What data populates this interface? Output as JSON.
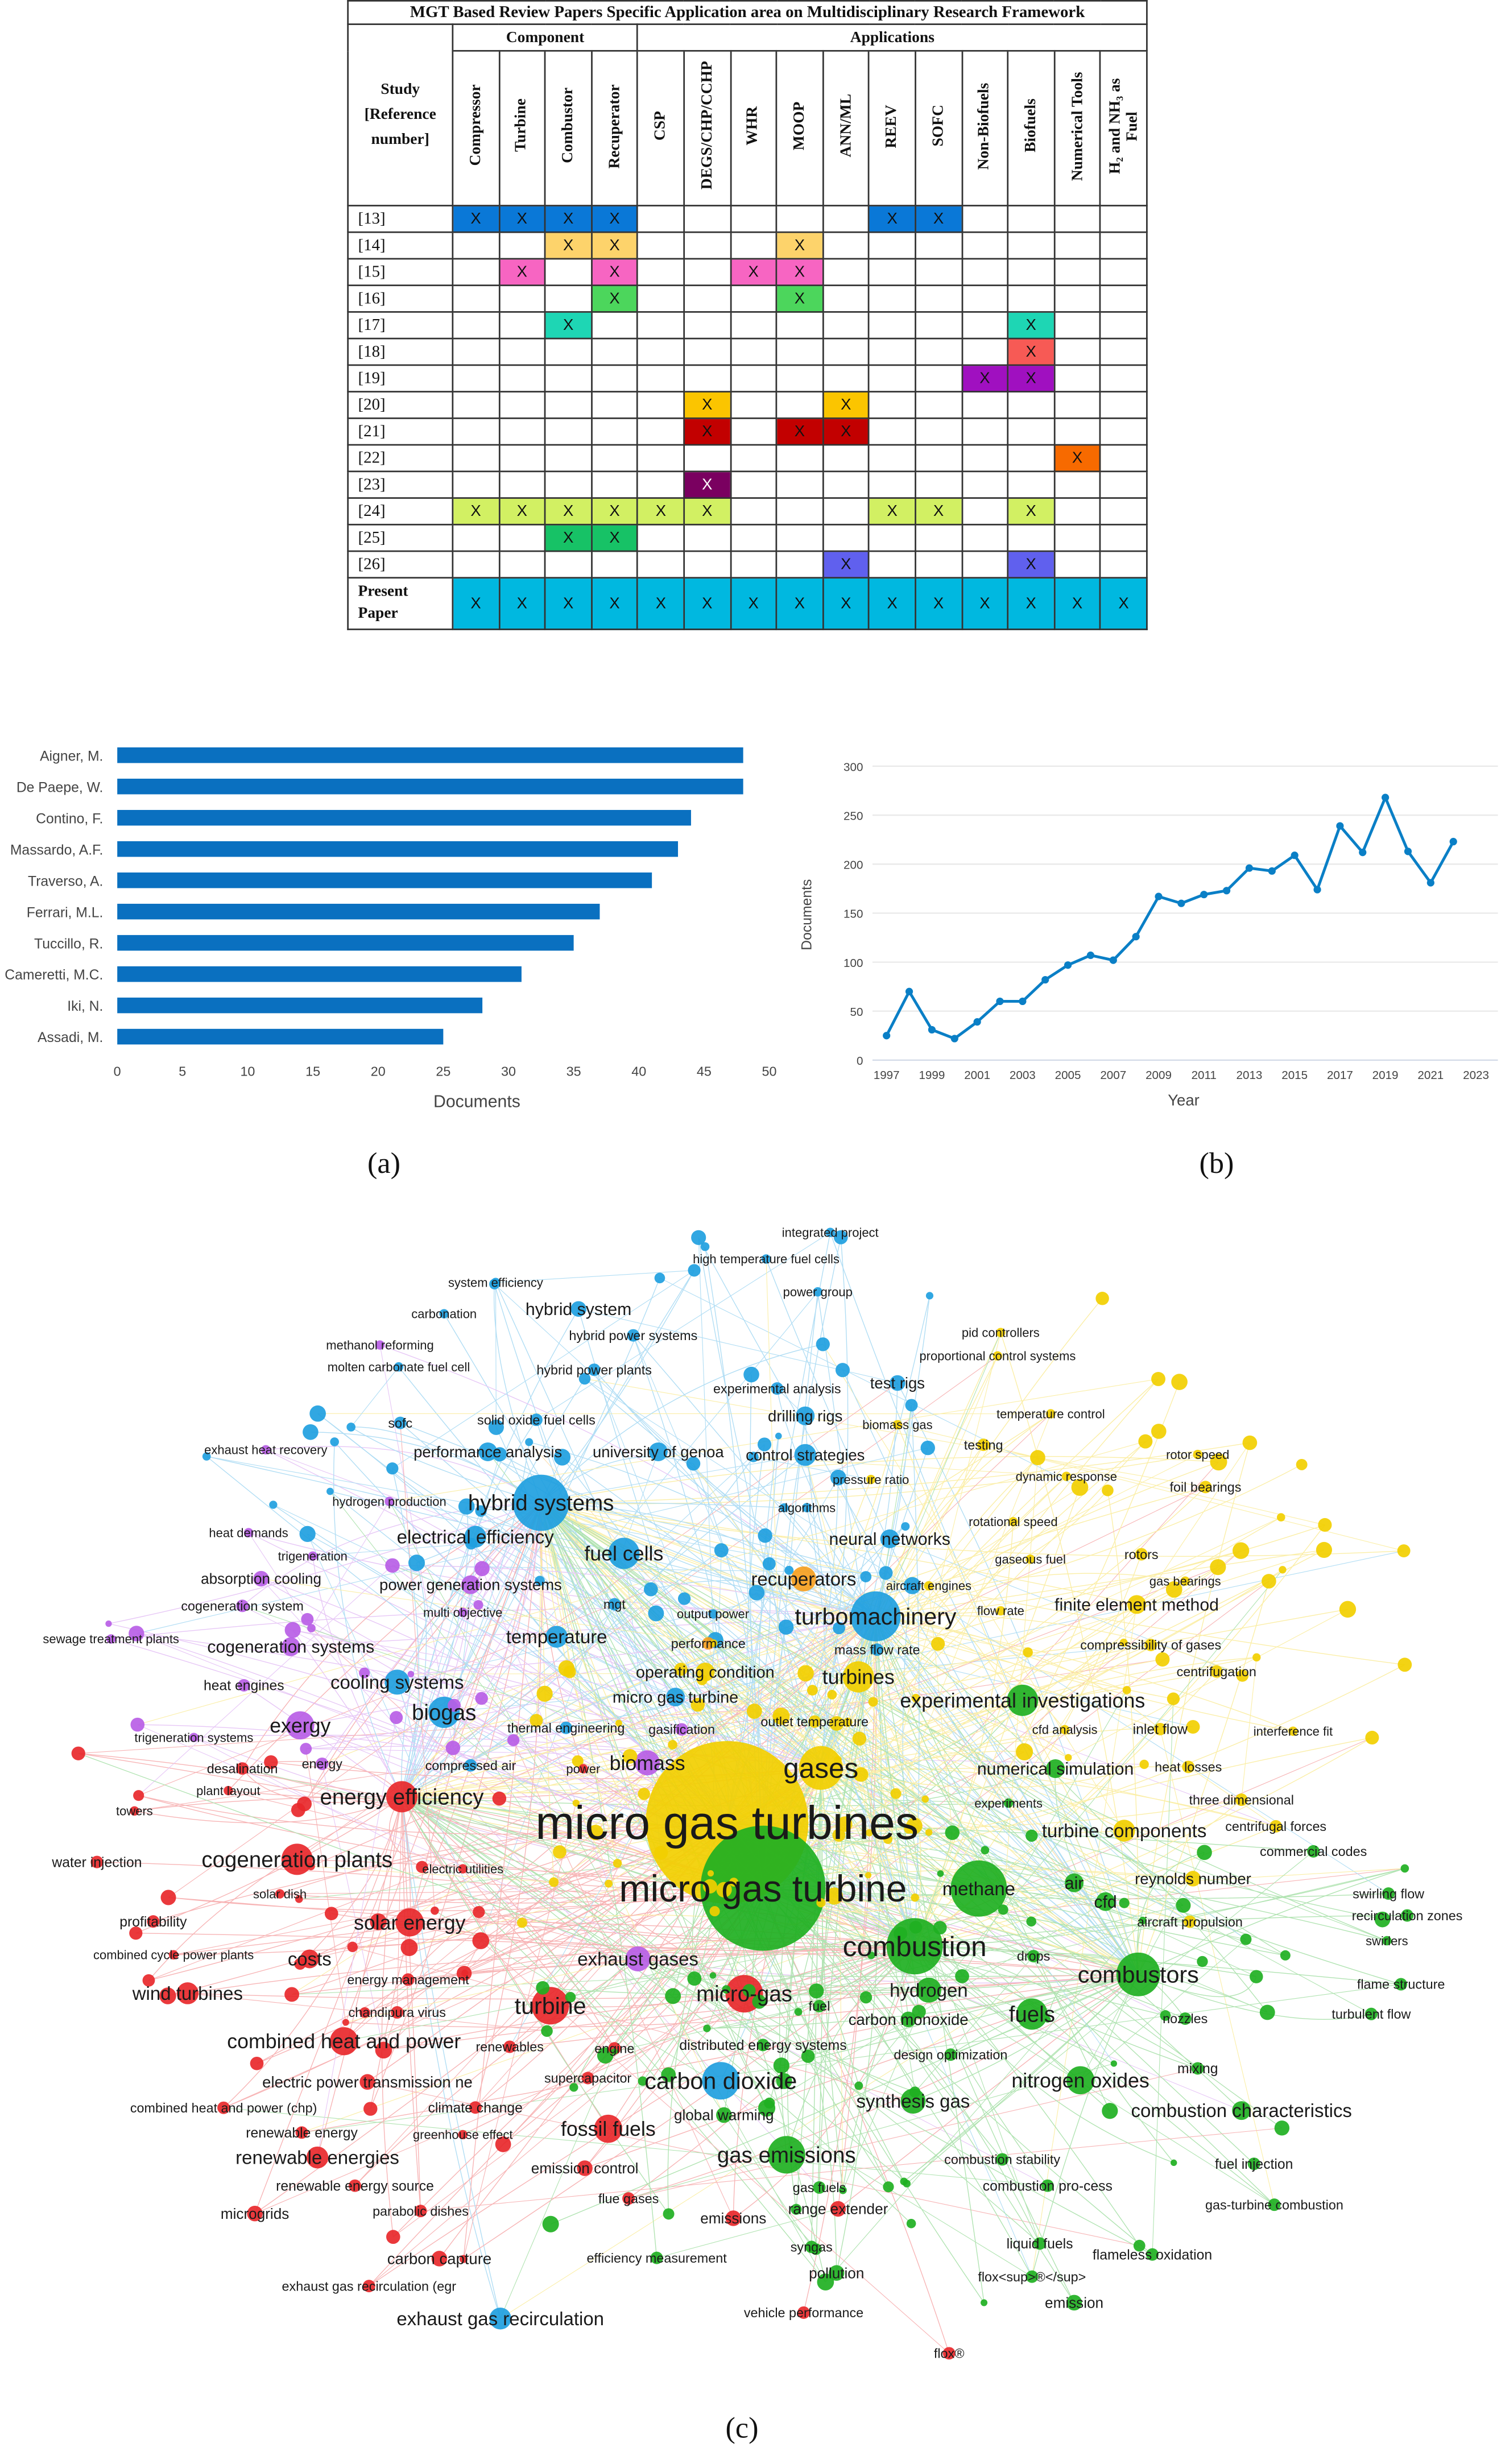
{
  "table": {
    "title": "MGT Based Review Papers Specific Application area on Multidisciplinary Research Framework",
    "group_component": "Component",
    "group_applications": "Applications",
    "study_header": "Study\n[Reference\nnumber]",
    "columns": [
      "Compressor",
      "Turbine",
      "Combustor",
      "Recuperator",
      "CSP",
      "DEGS/CHP/CCHP",
      "WHR",
      "MOOP",
      "ANN/ML",
      "REEV",
      "SOFC",
      "Non-Biofuels",
      "Biofuels",
      "Numerical Tools",
      "H₂ and NH₃ as\nFuel"
    ],
    "mark": "X",
    "rows": [
      {
        "ref": "[13]",
        "marks": [
          0,
          1,
          2,
          3,
          9,
          10
        ],
        "color": "#0a78d7"
      },
      {
        "ref": "[14]",
        "marks": [
          2,
          3,
          7
        ],
        "color": "#fdd36b"
      },
      {
        "ref": "[15]",
        "marks": [
          1,
          3,
          6,
          7
        ],
        "color": "#f765c2"
      },
      {
        "ref": "[16]",
        "marks": [
          3,
          7
        ],
        "color": "#4cd65c"
      },
      {
        "ref": "[17]",
        "marks": [
          2,
          12
        ],
        "color": "#1ed6b4"
      },
      {
        "ref": "[18]",
        "marks": [
          12
        ],
        "color": "#f75a55"
      },
      {
        "ref": "[19]",
        "marks": [
          11,
          12
        ],
        "color": "#a010c0"
      },
      {
        "ref": "[20]",
        "marks": [
          5,
          8
        ],
        "color": "#fbc500"
      },
      {
        "ref": "[21]",
        "marks": [
          5,
          7,
          8
        ],
        "color": "#c20000"
      },
      {
        "ref": "[22]",
        "marks": [
          13
        ],
        "color": "#f76a00"
      },
      {
        "ref": "[23]",
        "marks": [
          5
        ],
        "color": "#7a0060"
      },
      {
        "ref": "[24]",
        "marks": [
          0,
          1,
          2,
          3,
          4,
          5,
          9,
          10,
          12
        ],
        "color": "#d2f063"
      },
      {
        "ref": "[25]",
        "marks": [
          2,
          3
        ],
        "color": "#17c266"
      },
      {
        "ref": "[26]",
        "marks": [
          8,
          12
        ],
        "color": "#6060ee"
      }
    ],
    "present": {
      "label": "Present\nPaper",
      "color": "#00b8e0"
    }
  },
  "chart_data": [
    {
      "type": "bar",
      "orientation": "horizontal",
      "categories": [
        "Aigner, M.",
        "De Paepe, W.",
        "Contino, F.",
        "Massardo, A.F.",
        "Traverso, A.",
        "Ferrari, M.L.",
        "Tuccillo, R.",
        "Cameretti, M.C.",
        "Iki, N.",
        "Assadi, M."
      ],
      "values": [
        48,
        48,
        44,
        43,
        41,
        37,
        35,
        31,
        28,
        25
      ],
      "xlabel": "Documents",
      "ylabel": "",
      "xlim": [
        0,
        50
      ],
      "xticks": [
        0,
        5,
        10,
        15,
        20,
        25,
        30,
        35,
        40,
        45,
        50
      ],
      "color": "#0a70c0"
    },
    {
      "type": "line",
      "x": [
        1997,
        1998,
        1999,
        2000,
        2001,
        2002,
        2003,
        2004,
        2005,
        2006,
        2007,
        2008,
        2009,
        2010,
        2011,
        2012,
        2013,
        2014,
        2015,
        2016,
        2017,
        2018,
        2019,
        2020,
        2021,
        2022
      ],
      "values": [
        25,
        70,
        31,
        22,
        39,
        60,
        60,
        82,
        97,
        107,
        102,
        126,
        167,
        160,
        169,
        173,
        196,
        193,
        209,
        174,
        239,
        212,
        268,
        213,
        181,
        223
      ],
      "xlabel": "Year",
      "ylabel": "Documents",
      "ylim": [
        0,
        300
      ],
      "yticks": [
        0,
        50,
        100,
        150,
        200,
        250,
        300
      ],
      "xticks": [
        1997,
        1999,
        2001,
        2003,
        2005,
        2007,
        2009,
        2011,
        2013,
        2015,
        2017,
        2019,
        2021,
        2023
      ],
      "grid": true,
      "color": "#0a7fc6"
    }
  ],
  "network": {
    "cluster_colors": [
      "#1f9fe0",
      "#b95ee6",
      "#e8282b",
      "#f2cf00",
      "#1fb022",
      "#f6a01f"
    ],
    "labels": [
      "integrated project",
      "high temperature fuel cells",
      "power group",
      "system efficiency",
      "carbonation",
      "hybrid system",
      "methanol reforming",
      "hybrid power systems",
      "molten carbonate fuel cell",
      "hybrid power plants",
      "pid controllers",
      "proportional control systems",
      "experimental analysis",
      "test rigs",
      "drilling rigs",
      "biomass gas",
      "temperature control",
      "sofc",
      "solid oxide fuel cells",
      "exhaust heat recovery",
      "testing",
      "performance analysis",
      "university of genoa",
      "control strategies",
      "rotor speed",
      "pressure ratio",
      "dynamic response",
      "foil bearings",
      "hydrogen production",
      "hybrid systems",
      "algorithms",
      "heat demands",
      "rotational speed",
      "electrical efficiency",
      "neural networks",
      "fuel cells",
      "trigeneration",
      "gaseous fuel",
      "rotors",
      "absorption cooling",
      "power generation systems",
      "recuperators",
      "aircraft engines",
      "gas bearings",
      "cogeneration system",
      "multi objective",
      "mgt",
      "output power",
      "turbomachinery",
      "flow rate",
      "finite element method",
      "sewage treatment plants",
      "temperature",
      "performance",
      "cogeneration systems",
      "mass flow rate",
      "compressibility of gases",
      "operating condition",
      "heat engines",
      "cooling systems",
      "turbines",
      "centrifugation",
      "micro gas turbine",
      "experimental investigations",
      "biogas",
      "exergy",
      "thermal engineering",
      "gasification",
      "outlet temperature",
      "cfd analysis",
      "inlet flow",
      "interference fit",
      "trigeneration systems",
      "desalination",
      "energy",
      "compressed air",
      "power",
      "biomass",
      "gases",
      "numerical simulation",
      "heat losses",
      "plant layout",
      "energy efficiency",
      "experiments",
      "three dimensional",
      "towers",
      "micro gas turbines",
      "centrifugal forces",
      "turbine components",
      "commercial codes",
      "water injection",
      "cogeneration plants",
      "electric utilities",
      "micro gas turbine",
      "methane",
      "reynolds number",
      "air",
      "swirling flow",
      "solar dish",
      "cfd",
      "recirculation zones",
      "profitability",
      "solar energy",
      "aircraft propulsion",
      "combustion",
      "swirlers",
      "combined cycle power plants",
      "costs",
      "drops",
      "exhaust gases",
      "energy management",
      "combustors",
      "flame structure",
      "wind turbines",
      "hydrogen",
      "micro-gas",
      "chandipura virus",
      "turbine",
      "fuel",
      "carbon monoxide",
      "fuels",
      "turbulent flow",
      "nozzles",
      "combined heat and power",
      "renewables",
      "engine",
      "distributed energy systems",
      "design optimization",
      "mixing",
      "electric power transmission ne",
      "supercapacitor",
      "carbon dioxide",
      "nitrogen oxides",
      "combined heat and power (chp)",
      "climate change",
      "synthesis gas",
      "combustion characteristics",
      "global warming",
      "renewable energy",
      "greenhouse effect",
      "fossil fuels",
      "renewable energies",
      "gas emissions",
      "combustion stability",
      "emission control",
      "fuel injection",
      "renewable energy source",
      "combustion pro-cess",
      "gas fuels",
      "gas-turbine combustion",
      "microgrids",
      "parabolic dishes",
      "flue gases",
      "emissions",
      "range extender",
      "liquid fuels",
      "flameless oxidation",
      "carbon capture",
      "syngas",
      "efficiency measurement",
      "pollution",
      "exhaust gas recirculation (egr",
      "flox<sup>®</sup>",
      "emission",
      "vehicle performance",
      "exhaust gas recirculation",
      "flox®"
    ]
  },
  "captions": {
    "a": "(a)",
    "b": "(b)",
    "c": "(c)"
  }
}
